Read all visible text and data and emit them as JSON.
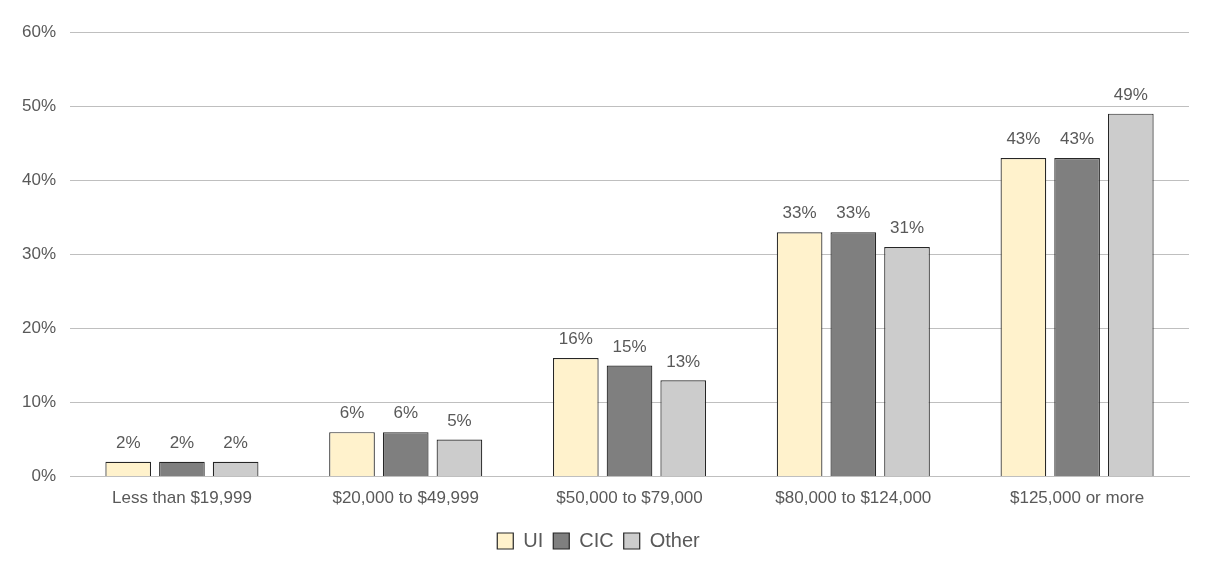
{
  "chart_data": {
    "type": "bar",
    "categories": [
      "Less than $19,999",
      "$20,000 to $49,999",
      "$50,000 to $79,000",
      "$80,000 to $124,000",
      "$125,000 or more"
    ],
    "series": [
      {
        "name": "UI",
        "color": "#fff2cc",
        "values": [
          2,
          6,
          16,
          33,
          43
        ],
        "value_labels": [
          "2%",
          "6%",
          "16%",
          "33%",
          "43%"
        ]
      },
      {
        "name": "CIC",
        "color": "#7f7f7f",
        "values": [
          2,
          6,
          15,
          33,
          43
        ],
        "value_labels": [
          "2%",
          "6%",
          "15%",
          "33%",
          "43%"
        ]
      },
      {
        "name": "Other",
        "color": "#cccccc",
        "values": [
          2,
          5,
          13,
          31,
          49
        ],
        "value_labels": [
          "2%",
          "5%",
          "13%",
          "31%",
          "49%"
        ]
      }
    ],
    "ylim": [
      0,
      60
    ],
    "yticks": [
      {
        "value": 0,
        "label": "0%"
      },
      {
        "value": 10,
        "label": "10%"
      },
      {
        "value": 20,
        "label": "20%"
      },
      {
        "value": 30,
        "label": "30%"
      },
      {
        "value": 40,
        "label": "40%"
      },
      {
        "value": 50,
        "label": "50%"
      },
      {
        "value": 60,
        "label": "60%"
      }
    ],
    "grid": "y",
    "legend": "bottom"
  }
}
